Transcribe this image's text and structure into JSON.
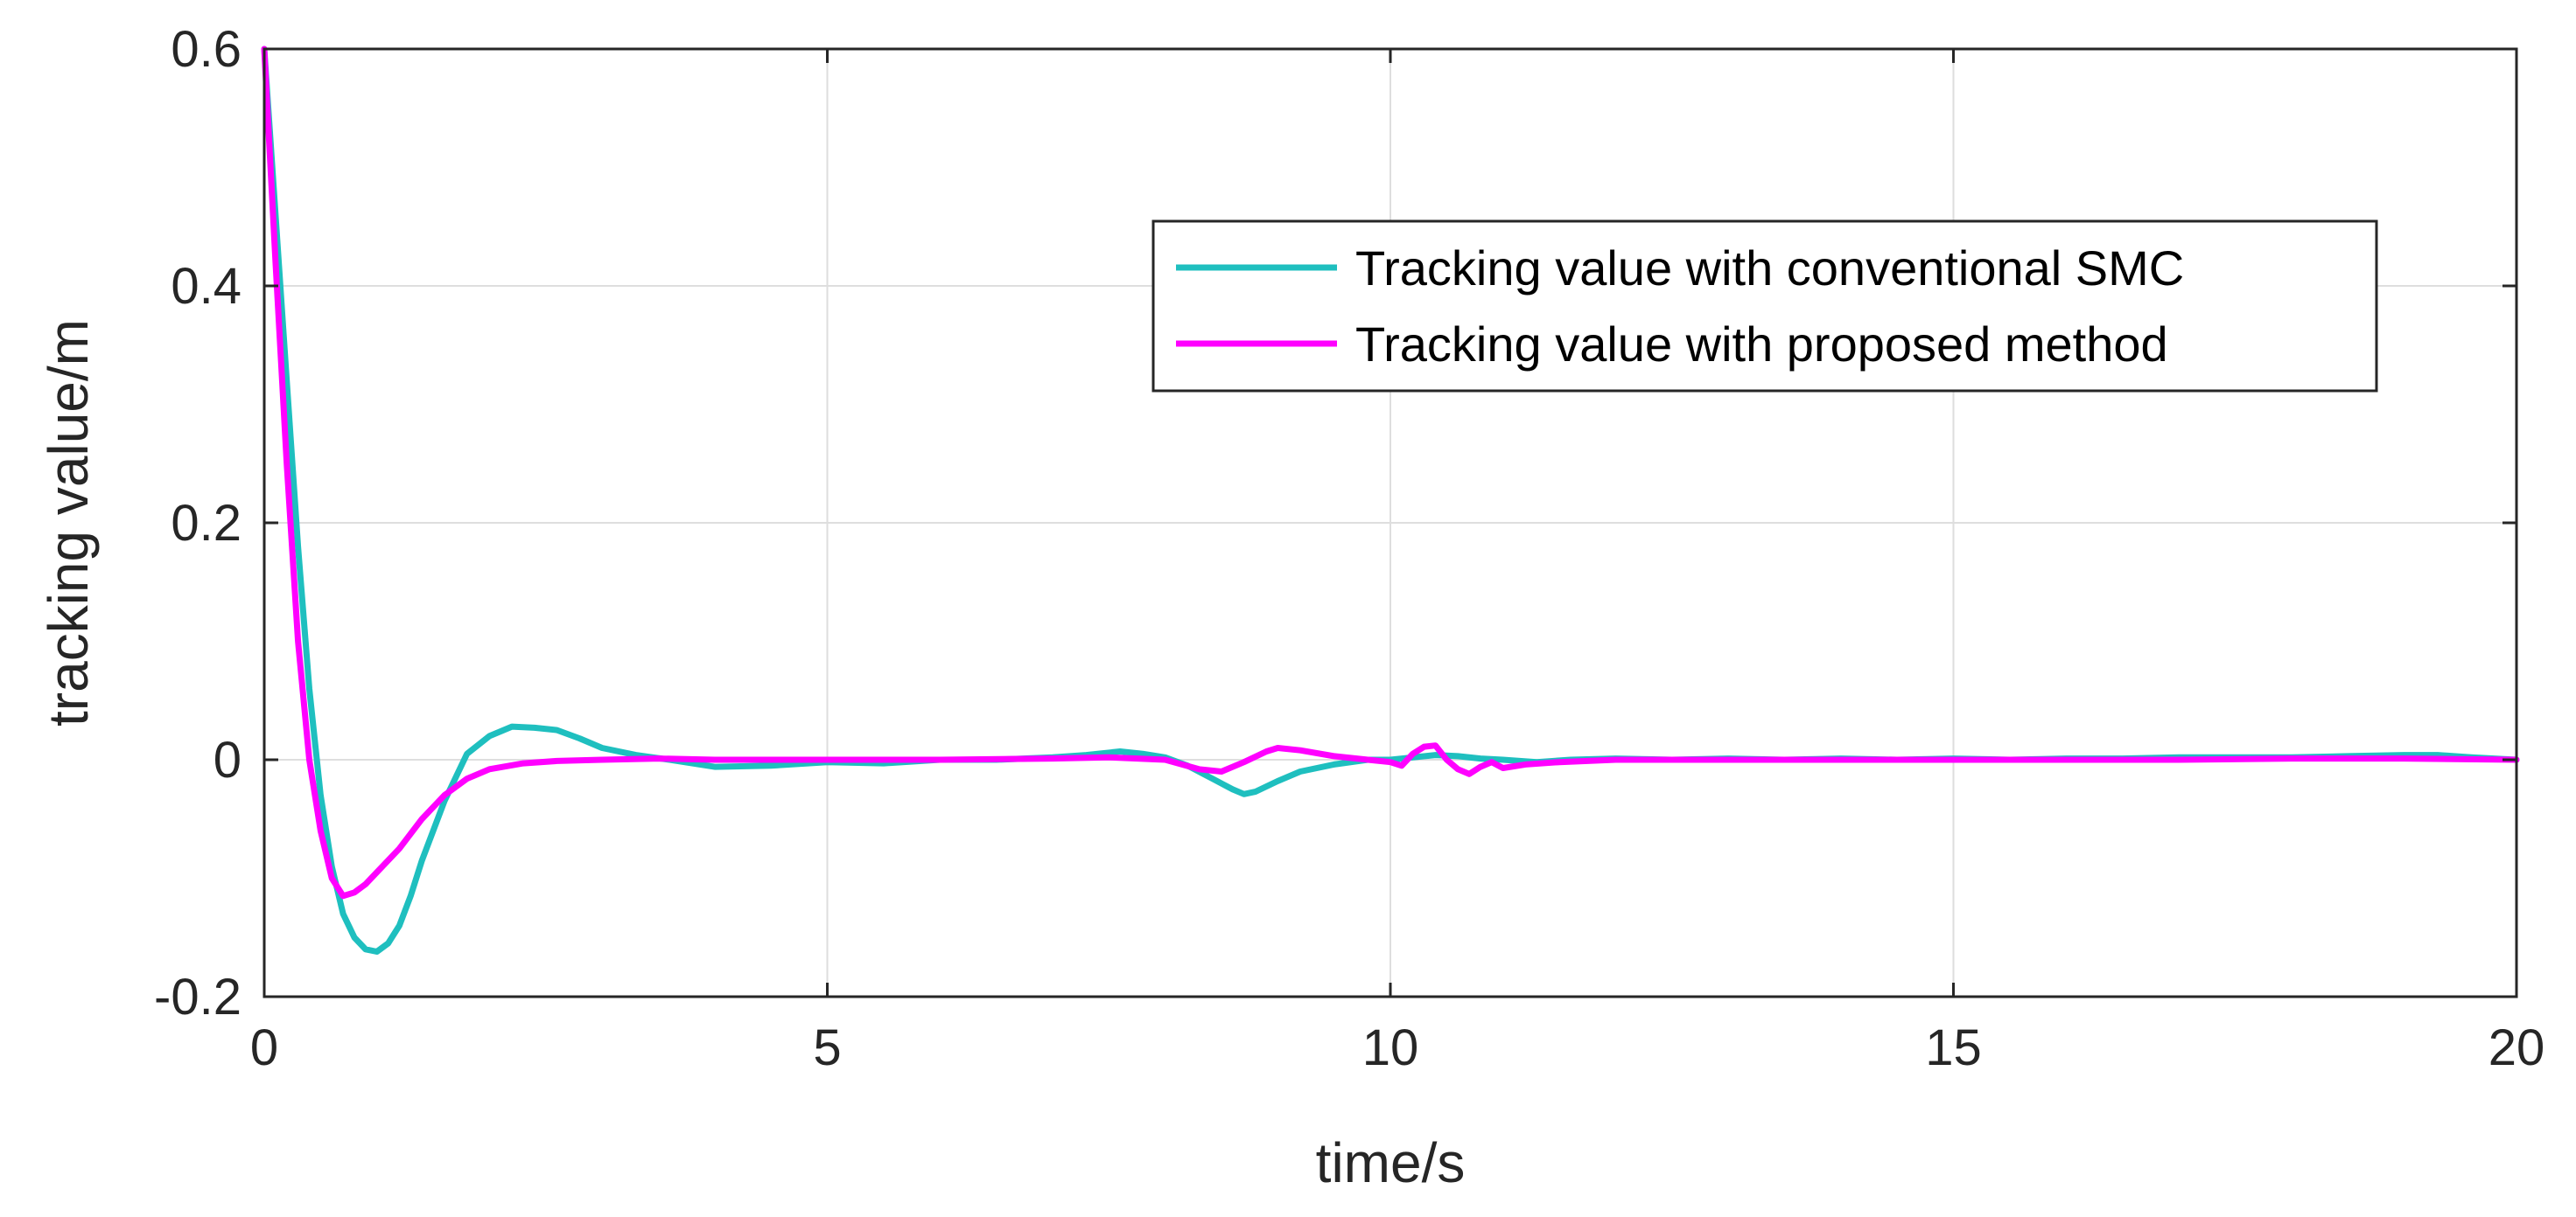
{
  "chart_data": {
    "type": "line",
    "title": "",
    "xlabel": "time/s",
    "ylabel": "tracking value/m",
    "xlim": [
      0,
      20
    ],
    "ylim": [
      -0.2,
      0.6
    ],
    "xticks": [
      0,
      5,
      10,
      15,
      20
    ],
    "xtick_labels": [
      "0",
      "5",
      "10",
      "15",
      "20"
    ],
    "yticks": [
      -0.2,
      0,
      0.2,
      0.4,
      0.6
    ],
    "ytick_labels": [
      "-0.2",
      "0",
      "0.2",
      "0.4",
      "0.6"
    ],
    "grid": true,
    "legend_position": "top-right",
    "series": [
      {
        "name": "Tracking value with conventional SMC",
        "color": "#1fbfbf",
        "x": [
          0,
          0.1,
          0.2,
          0.3,
          0.4,
          0.5,
          0.6,
          0.7,
          0.8,
          0.9,
          1.0,
          1.1,
          1.2,
          1.3,
          1.4,
          1.6,
          1.8,
          2.0,
          2.2,
          2.4,
          2.6,
          2.8,
          3.0,
          3.3,
          3.6,
          4.0,
          4.5,
          5.0,
          5.5,
          6.0,
          6.5,
          7.0,
          7.3,
          7.6,
          7.8,
          8.0,
          8.2,
          8.4,
          8.6,
          8.7,
          8.8,
          9.0,
          9.2,
          9.5,
          9.8,
          10.0,
          10.2,
          10.4,
          10.6,
          10.8,
          11.0,
          11.3,
          11.6,
          12.0,
          12.5,
          13.0,
          13.5,
          14.0,
          14.5,
          15.0,
          15.5,
          16.0,
          16.5,
          17.0,
          17.5,
          18.0,
          18.5,
          19.0,
          19.3,
          19.6,
          20.0
        ],
        "values": [
          0.6,
          0.46,
          0.32,
          0.18,
          0.06,
          -0.03,
          -0.09,
          -0.13,
          -0.15,
          -0.16,
          -0.162,
          -0.155,
          -0.14,
          -0.115,
          -0.085,
          -0.035,
          0.005,
          0.02,
          0.028,
          0.027,
          0.025,
          0.018,
          0.01,
          0.004,
          0.0,
          -0.006,
          -0.005,
          -0.002,
          -0.003,
          0.0,
          0.0,
          0.002,
          0.004,
          0.007,
          0.005,
          0.002,
          -0.005,
          -0.015,
          -0.025,
          -0.029,
          -0.027,
          -0.018,
          -0.01,
          -0.004,
          0.0,
          0.0,
          0.002,
          0.004,
          0.003,
          0.001,
          0.0,
          -0.002,
          0.0,
          0.001,
          0.0,
          0.001,
          0.0,
          0.001,
          0.0,
          0.001,
          0.0,
          0.001,
          0.001,
          0.002,
          0.002,
          0.002,
          0.003,
          0.004,
          0.004,
          0.002,
          0.0
        ]
      },
      {
        "name": "Tracking value with proposed method",
        "color": "#ff00ff",
        "x": [
          0,
          0.1,
          0.2,
          0.3,
          0.4,
          0.5,
          0.6,
          0.7,
          0.8,
          0.9,
          1.0,
          1.2,
          1.4,
          1.6,
          1.8,
          2.0,
          2.3,
          2.6,
          3.0,
          3.5,
          4.0,
          5.0,
          6.0,
          7.0,
          7.5,
          8.0,
          8.3,
          8.5,
          8.7,
          8.9,
          9.0,
          9.2,
          9.5,
          9.8,
          10.0,
          10.1,
          10.2,
          10.3,
          10.4,
          10.5,
          10.6,
          10.7,
          10.8,
          10.9,
          11.0,
          11.2,
          11.5,
          12.0,
          13.0,
          14.0,
          15.0,
          16.0,
          17.0,
          18.0,
          19.0,
          20.0
        ],
        "values": [
          0.6,
          0.42,
          0.25,
          0.1,
          0.0,
          -0.06,
          -0.1,
          -0.115,
          -0.112,
          -0.105,
          -0.095,
          -0.075,
          -0.05,
          -0.03,
          -0.016,
          -0.008,
          -0.003,
          -0.001,
          0.0,
          0.001,
          0.0,
          0.0,
          0.0,
          0.001,
          0.002,
          0.0,
          -0.008,
          -0.01,
          -0.002,
          0.007,
          0.01,
          0.008,
          0.003,
          0.0,
          -0.002,
          -0.005,
          0.005,
          0.011,
          0.012,
          0.0,
          -0.008,
          -0.012,
          -0.006,
          -0.002,
          -0.007,
          -0.004,
          -0.002,
          0.0,
          0.0,
          0.0,
          0.0,
          0.0,
          0.0,
          0.001,
          0.001,
          0.0
        ]
      }
    ]
  }
}
